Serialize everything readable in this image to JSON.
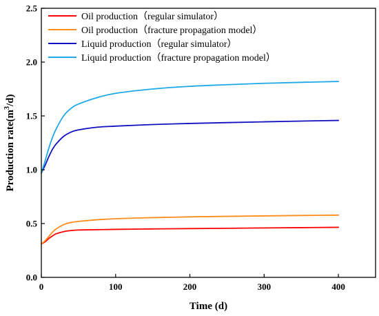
{
  "chart_data": {
    "type": "line",
    "xlabel": "Time (d)",
    "ylabel": "Production rate(m³/d)",
    "ylabel_unit_base": "Production rate(m",
    "ylabel_unit_sup": "3",
    "ylabel_unit_tail": "/d)",
    "xlim": [
      0,
      450
    ],
    "ylim": [
      0,
      2.5
    ],
    "xticks": [
      0,
      100,
      200,
      300,
      400
    ],
    "xtick_labels": [
      "0",
      "100",
      "200",
      "300",
      "400"
    ],
    "yticks": [
      0,
      0.5,
      1.0,
      1.5,
      2.0,
      2.5
    ],
    "ytick_labels": [
      "0.0",
      "0.5",
      "1.0",
      "1.5",
      "2.0",
      "2.5"
    ],
    "grid": false,
    "legend_position": "top-left",
    "series": [
      {
        "name": "Oil production（regular simulator）",
        "color": "#ff0000",
        "x": [
          0,
          5,
          10,
          15,
          20,
          30,
          40,
          50,
          75,
          100,
          150,
          200,
          250,
          300,
          350,
          400
        ],
        "y": [
          0.31,
          0.33,
          0.36,
          0.385,
          0.405,
          0.425,
          0.435,
          0.44,
          0.443,
          0.446,
          0.45,
          0.453,
          0.456,
          0.459,
          0.462,
          0.465
        ]
      },
      {
        "name": "Oil production（fracture propagation model）",
        "color": "#ff8c1a",
        "x": [
          0,
          5,
          10,
          15,
          20,
          30,
          40,
          50,
          75,
          100,
          150,
          200,
          250,
          300,
          350,
          400
        ],
        "y": [
          0.31,
          0.34,
          0.38,
          0.42,
          0.45,
          0.49,
          0.51,
          0.52,
          0.535,
          0.545,
          0.555,
          0.562,
          0.567,
          0.571,
          0.575,
          0.578
        ]
      },
      {
        "name": "Liquid production（regular simulator）",
        "color": "#1010c0",
        "x": [
          0,
          5,
          10,
          15,
          20,
          30,
          40,
          50,
          75,
          100,
          150,
          200,
          250,
          300,
          350,
          400
        ],
        "y": [
          0.97,
          1.04,
          1.12,
          1.19,
          1.24,
          1.31,
          1.35,
          1.37,
          1.395,
          1.405,
          1.42,
          1.43,
          1.438,
          1.445,
          1.452,
          1.458
        ]
      },
      {
        "name": "Liquid production（fracture propagation model）",
        "color": "#1ea8e8",
        "x": [
          0,
          5,
          10,
          15,
          20,
          30,
          40,
          50,
          75,
          100,
          150,
          200,
          250,
          300,
          350,
          400
        ],
        "y": [
          0.97,
          1.08,
          1.2,
          1.3,
          1.38,
          1.5,
          1.57,
          1.61,
          1.67,
          1.71,
          1.75,
          1.775,
          1.79,
          1.803,
          1.812,
          1.82
        ]
      }
    ]
  }
}
